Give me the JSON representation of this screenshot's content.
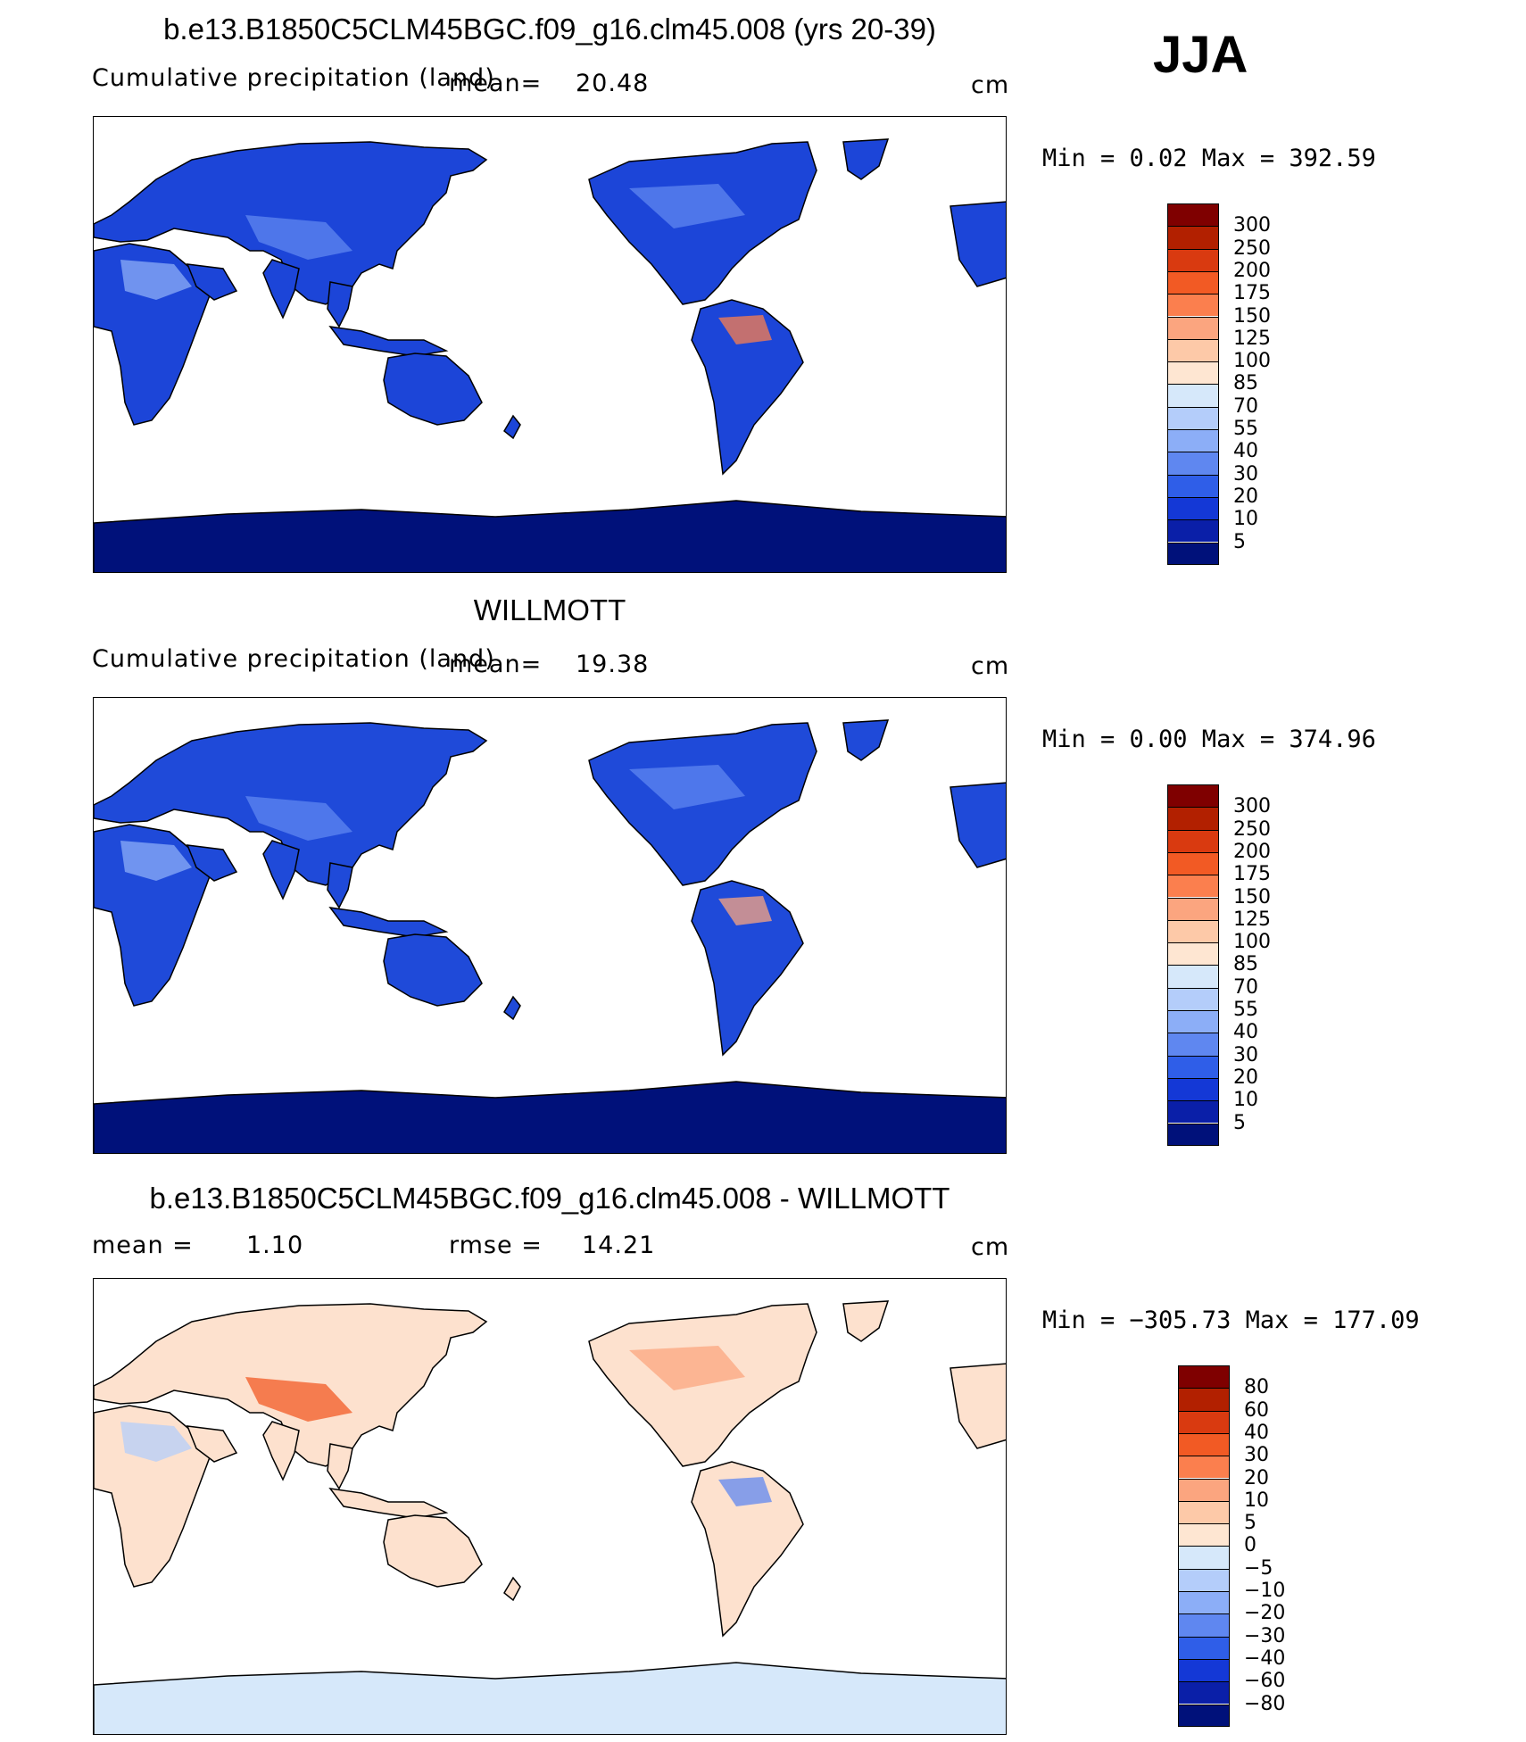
{
  "season": "JJA",
  "unit_label": "cm",
  "panels": [
    {
      "title": "b.e13.B1850C5CLM45BGC.f09_g16.clm45.008 (yrs 20-39)",
      "left_label": "Cumulative precipitation (land)",
      "mean_label": "mean=",
      "mean_value": "20.48",
      "stats_text": "Min  =     0.02  Max  =  392.59",
      "colorbar_labels": [
        "300",
        "250",
        "200",
        "175",
        "150",
        "125",
        "100",
        "85",
        "70",
        "55",
        "40",
        "30",
        "20",
        "10",
        "5"
      ]
    },
    {
      "title": "WILLMOTT",
      "left_label": "Cumulative precipitation (land)",
      "mean_label": "mean=",
      "mean_value": "19.38",
      "stats_text": "Min  =     0.00  Max  =  374.96",
      "colorbar_labels": [
        "300",
        "250",
        "200",
        "175",
        "150",
        "125",
        "100",
        "85",
        "70",
        "55",
        "40",
        "30",
        "20",
        "10",
        "5"
      ]
    },
    {
      "title": "b.e13.B1850C5CLM45BGC.f09_g16.clm45.008 - WILLMOTT",
      "left_label": "mean  =",
      "mean_value": "1.10",
      "rmse_label": "rmse  =",
      "rmse_value": "14.21",
      "stats_text": "Min  = −305.73  Max  =  177.09",
      "colorbar_labels": [
        "80",
        "60",
        "40",
        "30",
        "20",
        "10",
        "5",
        "0",
        "−5",
        "−10",
        "−20",
        "−30",
        "−40",
        "−60",
        "−80"
      ]
    }
  ],
  "colors": {
    "precip_scale": [
      "#7f0000",
      "#b22000",
      "#d93a10",
      "#f25a24",
      "#fb7f4e",
      "#fba57f",
      "#fdc9a8",
      "#fee6d2",
      "#d6e8fa",
      "#b4cdfa",
      "#8caef7",
      "#5f87f0",
      "#2f5ee8",
      "#1438d6",
      "#0a1fa8",
      "#00117a"
    ],
    "diff_scale": [
      "#7f0000",
      "#b22000",
      "#d93a10",
      "#f25a24",
      "#fb7f4e",
      "#fba57f",
      "#fdc9a8",
      "#fee6d2",
      "#d6e8fa",
      "#b4cdfa",
      "#8caef7",
      "#5f87f0",
      "#2f5ee8",
      "#1438d6",
      "#0a1fa8",
      "#00117a"
    ],
    "land_dark": "#0a1fa8",
    "land_antarctica": "#00117a",
    "ocean": "#ffffff"
  }
}
